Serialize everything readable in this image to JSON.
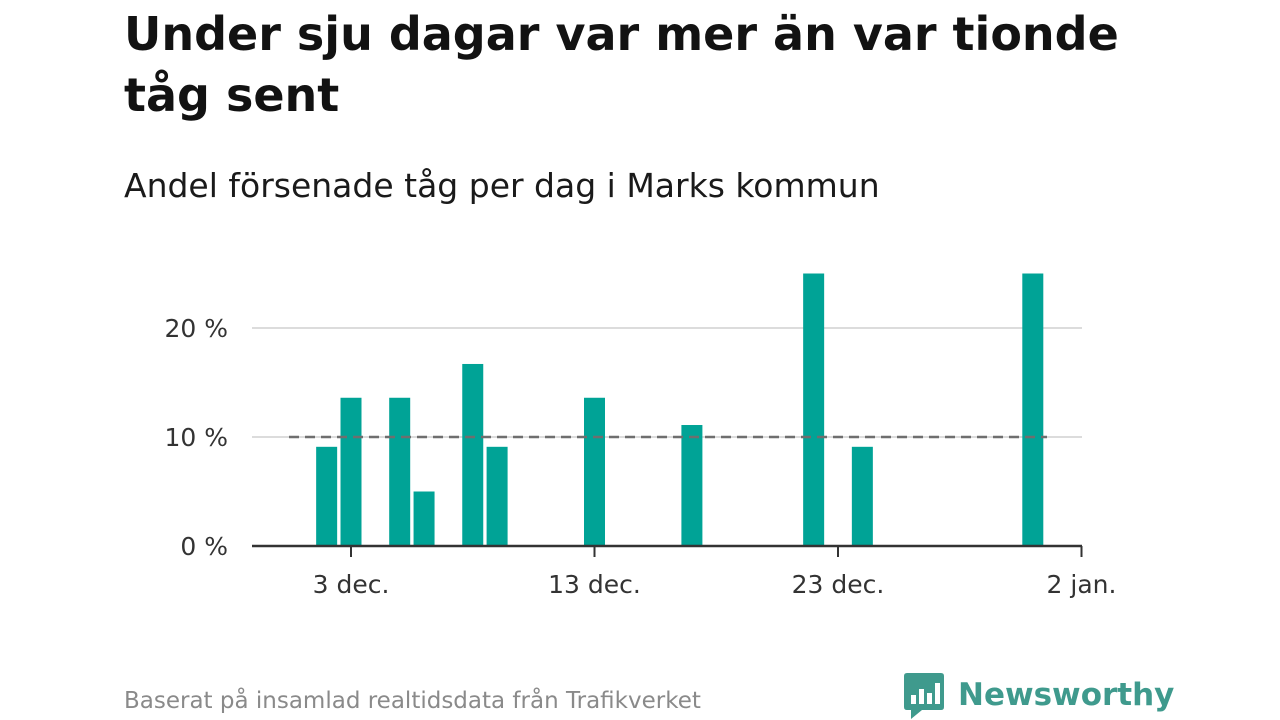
{
  "chart_data": {
    "type": "bar",
    "title": "Under sju dagar var mer än var tionde tåg sent",
    "subtitle": "Andel försenade tåg per dag i Marks kommun",
    "x_ticks": [
      "3 dec.",
      "13 dec.",
      "23 dec.",
      "2 jan."
    ],
    "y_ticks": [
      "0 %",
      "10 %",
      "20 %"
    ],
    "ylim": [
      0,
      25
    ],
    "reference_line": 10,
    "grid": true,
    "bar_color": "#00a396",
    "reference_line_color": "#6e6e6e",
    "bars": [
      {
        "date": "2 dec.",
        "value": 9.1
      },
      {
        "date": "3 dec.",
        "value": 13.6
      },
      {
        "date": "5 dec.",
        "value": 13.6
      },
      {
        "date": "6 dec.",
        "value": 5.0
      },
      {
        "date": "8 dec.",
        "value": 16.7
      },
      {
        "date": "9 dec.",
        "value": 9.1
      },
      {
        "date": "13 dec.",
        "value": 13.6
      },
      {
        "date": "17 dec.",
        "value": 11.1
      },
      {
        "date": "22 dec.",
        "value": 25.0
      },
      {
        "date": "24 dec.",
        "value": 9.1
      },
      {
        "date": "31 dec.",
        "value": 25.0
      }
    ]
  },
  "footer": {
    "source": "Baserat på insamlad realtidsdata från Trafikverket"
  },
  "brand": {
    "name": "Newsworthy",
    "icon": "newsworthy-logo-icon",
    "color": "#3f9a8d"
  }
}
